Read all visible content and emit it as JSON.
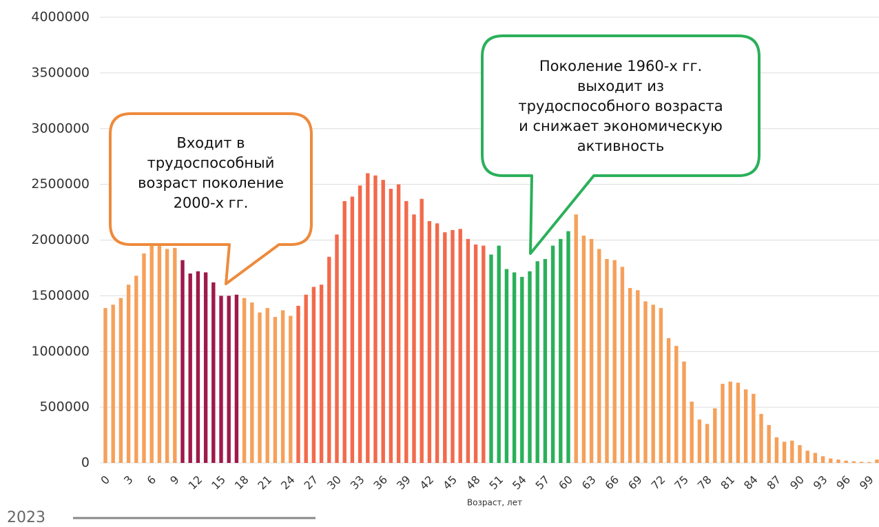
{
  "chart_data": {
    "type": "bar",
    "x_label": "Возраст, лет",
    "footnote": "2023",
    "categories": [
      0,
      null,
      null,
      3,
      null,
      null,
      6,
      null,
      null,
      9,
      null,
      null,
      12,
      null,
      null,
      15,
      null,
      null,
      18,
      null,
      null,
      21,
      null,
      null,
      24,
      null,
      null,
      27,
      null,
      null,
      30,
      null,
      null,
      33,
      null,
      null,
      36,
      null,
      null,
      39,
      null,
      null,
      42,
      null,
      null,
      45,
      null,
      null,
      48,
      null,
      null,
      51,
      null,
      null,
      54,
      null,
      null,
      57,
      null,
      null,
      60,
      null,
      null,
      63,
      null,
      null,
      66,
      null,
      null,
      69,
      null,
      null,
      72,
      null,
      null,
      75,
      null,
      null,
      78,
      null,
      null,
      81,
      null,
      null,
      84,
      null,
      null,
      87,
      null,
      null,
      90,
      null,
      null,
      93,
      null,
      null,
      96,
      null,
      null,
      99,
      null
    ],
    "values": [
      1390000,
      1420000,
      1480000,
      1600000,
      1680000,
      1880000,
      1950000,
      1950000,
      1920000,
      1930000,
      1820000,
      1700000,
      1720000,
      1710000,
      1620000,
      1500000,
      1500000,
      1510000,
      1480000,
      1440000,
      1350000,
      1390000,
      1310000,
      1370000,
      1320000,
      1410000,
      1510000,
      1580000,
      1600000,
      1850000,
      2050000,
      2350000,
      2390000,
      2490000,
      2600000,
      2580000,
      2540000,
      2460000,
      2500000,
      2350000,
      2230000,
      2370000,
      2170000,
      2150000,
      2070000,
      2090000,
      2100000,
      2010000,
      1960000,
      1950000,
      1870000,
      1950000,
      1740000,
      1710000,
      1670000,
      1720000,
      1810000,
      1830000,
      1950000,
      2010000,
      2080000,
      2230000,
      2040000,
      2010000,
      1920000,
      1830000,
      1820000,
      1760000,
      1570000,
      1550000,
      1450000,
      1420000,
      1390000,
      1120000,
      1050000,
      910000,
      550000,
      390000,
      350000,
      490000,
      710000,
      730000,
      720000,
      660000,
      620000,
      440000,
      340000,
      230000,
      190000,
      200000,
      160000,
      110000,
      90000,
      60000,
      40000,
      30000,
      20000,
      15000,
      10000,
      8000,
      30000
    ],
    "colors": [
      "#f5a05a",
      "#f5a05a",
      "#f5a05a",
      "#f5a05a",
      "#f5a05a",
      "#f5a05a",
      "#f5a05a",
      "#f5a05a",
      "#f5a05a",
      "#f5a05a",
      "#9e1a4b",
      "#9e1a4b",
      "#9e1a4b",
      "#9e1a4b",
      "#9e1a4b",
      "#9e1a4b",
      "#9e1a4b",
      "#9e1a4b",
      "#f5a05a",
      "#f5a05a",
      "#f5a05a",
      "#f5a05a",
      "#f5a05a",
      "#f5a05a",
      "#f5a05a",
      "#f26a4b",
      "#f26a4b",
      "#f26a4b",
      "#f26a4b",
      "#f26a4b",
      "#f26a4b",
      "#f26a4b",
      "#f26a4b",
      "#f26a4b",
      "#f26a4b",
      "#f26a4b",
      "#f26a4b",
      "#f26a4b",
      "#f26a4b",
      "#f26a4b",
      "#f26a4b",
      "#f26a4b",
      "#f26a4b",
      "#f26a4b",
      "#f26a4b",
      "#f26a4b",
      "#f26a4b",
      "#f26a4b",
      "#f26a4b",
      "#f26a4b",
      "#2bb05a",
      "#2bb05a",
      "#2bb05a",
      "#2bb05a",
      "#2bb05a",
      "#2bb05a",
      "#2bb05a",
      "#2bb05a",
      "#2bb05a",
      "#2bb05a",
      "#2bb05a",
      "#f5a05a",
      "#f5a05a",
      "#f5a05a",
      "#f5a05a",
      "#f5a05a",
      "#f5a05a",
      "#f5a05a",
      "#f5a05a",
      "#f5a05a",
      "#f5a05a",
      "#f5a05a",
      "#f5a05a",
      "#f5a05a",
      "#f5a05a",
      "#f5a05a",
      "#f5a05a",
      "#f5a05a",
      "#f5a05a",
      "#f5a05a",
      "#f5a05a",
      "#f5a05a",
      "#f5a05a",
      "#f5a05a",
      "#f5a05a",
      "#f5a05a",
      "#f5a05a",
      "#f5a05a",
      "#f5a05a",
      "#f5a05a",
      "#f5a05a",
      "#f5a05a",
      "#f5a05a",
      "#f5a05a",
      "#f5a05a",
      "#f5a05a",
      "#f5a05a",
      "#f5a05a",
      "#f5a05a",
      "#f5a05a",
      "#f5a05a"
    ],
    "ylim": [
      0,
      4000000
    ],
    "yticks": [
      0,
      500000,
      1000000,
      1500000,
      2000000,
      2500000,
      3000000,
      3500000,
      4000000
    ],
    "grid": true,
    "annotations": [
      {
        "lines": [
          "Входит в",
          "трудоспособный",
          "возраст поколение",
          "2000-х гг."
        ],
        "color": "#ee8a3c"
      },
      {
        "lines": [
          "Поколение 1960-х гг.",
          "выходит из",
          "трудоспособного возраста",
          "и снижает экономическую",
          "активность"
        ],
        "color": "#2bb05a"
      }
    ]
  }
}
